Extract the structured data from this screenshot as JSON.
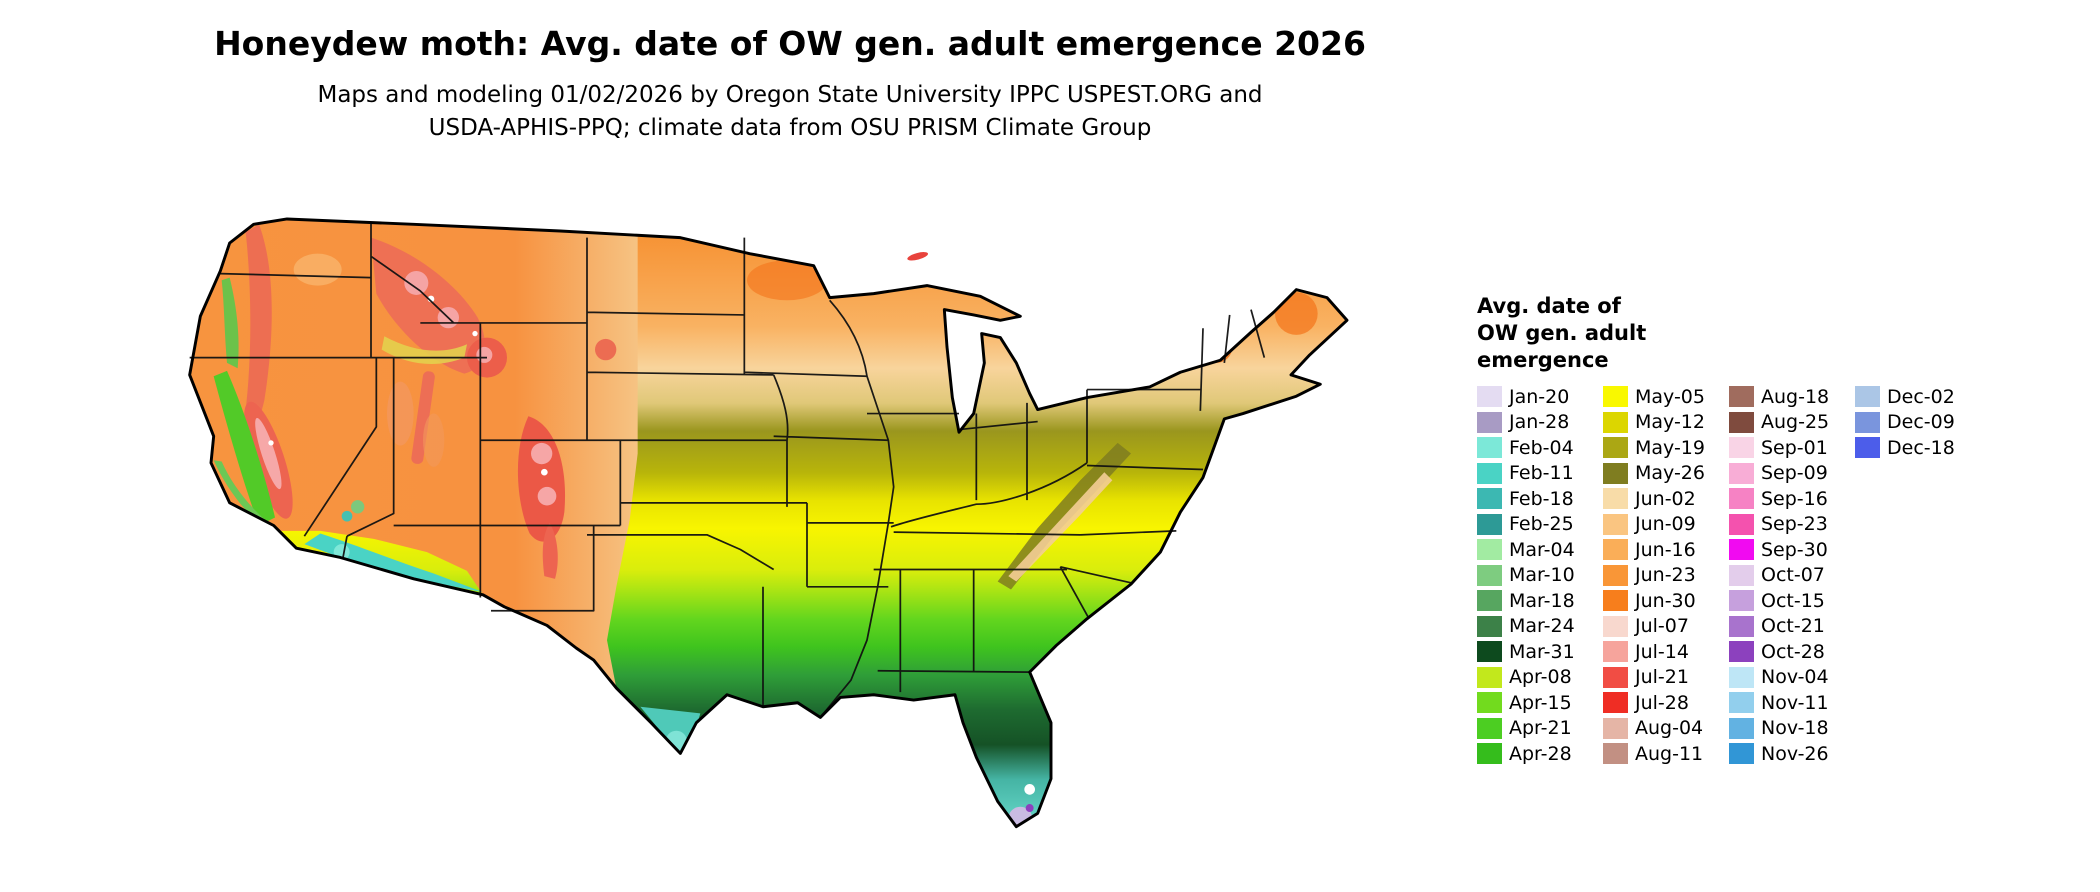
{
  "title": "Honeydew moth: Avg. date of OW gen. adult emergence 2026",
  "subtitle_line1": "Maps and modeling 01/02/2026 by Oregon State University IPPC USPEST.ORG and",
  "subtitle_line2": "USDA-APHIS-PPQ; climate data from OSU PRISM Climate Group",
  "legend": {
    "title_lines": [
      "Avg. date of",
      "OW gen. adult",
      "emergence"
    ],
    "columns": [
      {
        "entries": [
          {
            "label": "Jan-20",
            "color": "#E4DCF2"
          },
          {
            "label": "Jan-28",
            "color": "#A89BC4"
          },
          {
            "label": "Feb-04",
            "color": "#7CE8D8"
          },
          {
            "label": "Feb-11",
            "color": "#4AD3C5"
          },
          {
            "label": "Feb-18",
            "color": "#3CB8B2"
          },
          {
            "label": "Feb-25",
            "color": "#2D9A96"
          },
          {
            "label": "Mar-04",
            "color": "#A2EBA2"
          },
          {
            "label": "Mar-10",
            "color": "#7ECC80"
          },
          {
            "label": "Mar-18",
            "color": "#57A660"
          },
          {
            "label": "Mar-24",
            "color": "#3C8148"
          },
          {
            "label": "Mar-31",
            "color": "#0D4A1E"
          },
          {
            "label": "Apr-08",
            "color": "#C2E81C"
          },
          {
            "label": "Apr-15",
            "color": "#72DB1E"
          },
          {
            "label": "Apr-21",
            "color": "#4CCE22"
          },
          {
            "label": "Apr-28",
            "color": "#35BD1C"
          }
        ]
      },
      {
        "entries": [
          {
            "label": "May-05",
            "color": "#F9F800"
          },
          {
            "label": "May-12",
            "color": "#DCD600"
          },
          {
            "label": "May-19",
            "color": "#ABA714"
          },
          {
            "label": "May-26",
            "color": "#7F7D20"
          },
          {
            "label": "Jun-02",
            "color": "#F8DCA8"
          },
          {
            "label": "Jun-09",
            "color": "#FAC581"
          },
          {
            "label": "Jun-16",
            "color": "#FAAE58"
          },
          {
            "label": "Jun-23",
            "color": "#F99637"
          },
          {
            "label": "Jun-30",
            "color": "#F77E1C"
          },
          {
            "label": "Jul-07",
            "color": "#F8D8CE"
          },
          {
            "label": "Jul-14",
            "color": "#F6A49C"
          },
          {
            "label": "Jul-21",
            "color": "#F14D44"
          },
          {
            "label": "Jul-28",
            "color": "#EF2D24"
          },
          {
            "label": "Aug-04",
            "color": "#E5B5A6"
          },
          {
            "label": "Aug-11",
            "color": "#C29083"
          }
        ]
      },
      {
        "entries": [
          {
            "label": "Aug-18",
            "color": "#A06C5E"
          },
          {
            "label": "Aug-25",
            "color": "#7F4B3E"
          },
          {
            "label": "Sep-01",
            "color": "#F9D4E6"
          },
          {
            "label": "Sep-09",
            "color": "#F8ADD6"
          },
          {
            "label": "Sep-16",
            "color": "#F682C4"
          },
          {
            "label": "Sep-23",
            "color": "#F452AE"
          },
          {
            "label": "Sep-30",
            "color": "#F10AF1"
          },
          {
            "label": "Oct-07",
            "color": "#E3CDEB"
          },
          {
            "label": "Oct-15",
            "color": "#C6A0DD"
          },
          {
            "label": "Oct-21",
            "color": "#A873CD"
          },
          {
            "label": "Oct-28",
            "color": "#8C41BE"
          },
          {
            "label": "Nov-04",
            "color": "#BEE6F6"
          },
          {
            "label": "Nov-11",
            "color": "#92CFED"
          },
          {
            "label": "Nov-18",
            "color": "#62B2E2"
          },
          {
            "label": "Nov-26",
            "color": "#3196D6"
          }
        ]
      },
      {
        "entries": [
          {
            "label": "Dec-02",
            "color": "#ABC6E6"
          },
          {
            "label": "Dec-09",
            "color": "#7A95DD"
          },
          {
            "label": "Dec-18",
            "color": "#4C5DEA"
          }
        ]
      }
    ]
  }
}
